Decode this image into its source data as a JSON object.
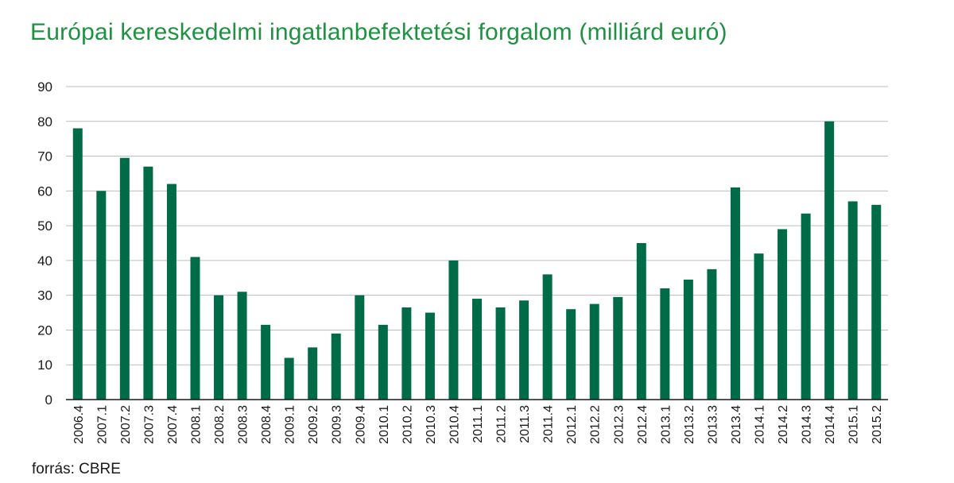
{
  "title": "Európai kereskedelmi ingatlanbefektetési forgalom (milliárd euró)",
  "source": "forrás: CBRE",
  "bar_color": "#006c47",
  "grid_color": "#bdbdbd",
  "chart_data": {
    "type": "bar",
    "title": "Európai kereskedelmi ingatlanbefektetési forgalom (milliárd euró)",
    "xlabel": "",
    "ylabel": "",
    "ylim": [
      0,
      90
    ],
    "yticks": [
      0,
      10,
      20,
      30,
      40,
      50,
      60,
      70,
      80,
      90
    ],
    "grid": true,
    "categories": [
      "2006.4",
      "2007.1",
      "2007.2",
      "2007.3",
      "2007.4",
      "2008.1",
      "2008.2",
      "2008.3",
      "2008.4",
      "2009.1",
      "2009.2",
      "2009.3",
      "2009.4",
      "2010.1",
      "2010.2",
      "2010.3",
      "2010.4",
      "2011.1",
      "2011.2",
      "2011.3",
      "2011.4",
      "2012.1",
      "2012.2",
      "2012.3",
      "2012.4",
      "2013.1",
      "2013.2",
      "2013.3",
      "2013.4",
      "2014.1",
      "2014.2",
      "2014.3",
      "2014.4",
      "2015.1",
      "2015.2"
    ],
    "values": [
      78,
      60,
      69.5,
      67,
      62,
      41,
      30,
      31,
      21.5,
      12,
      15,
      19,
      30,
      21.5,
      26.5,
      25,
      40,
      29,
      26.5,
      28.5,
      36,
      26,
      27.5,
      29.5,
      45,
      32,
      34.5,
      37.5,
      61,
      42,
      49,
      53.5,
      80,
      57,
      56
    ]
  }
}
